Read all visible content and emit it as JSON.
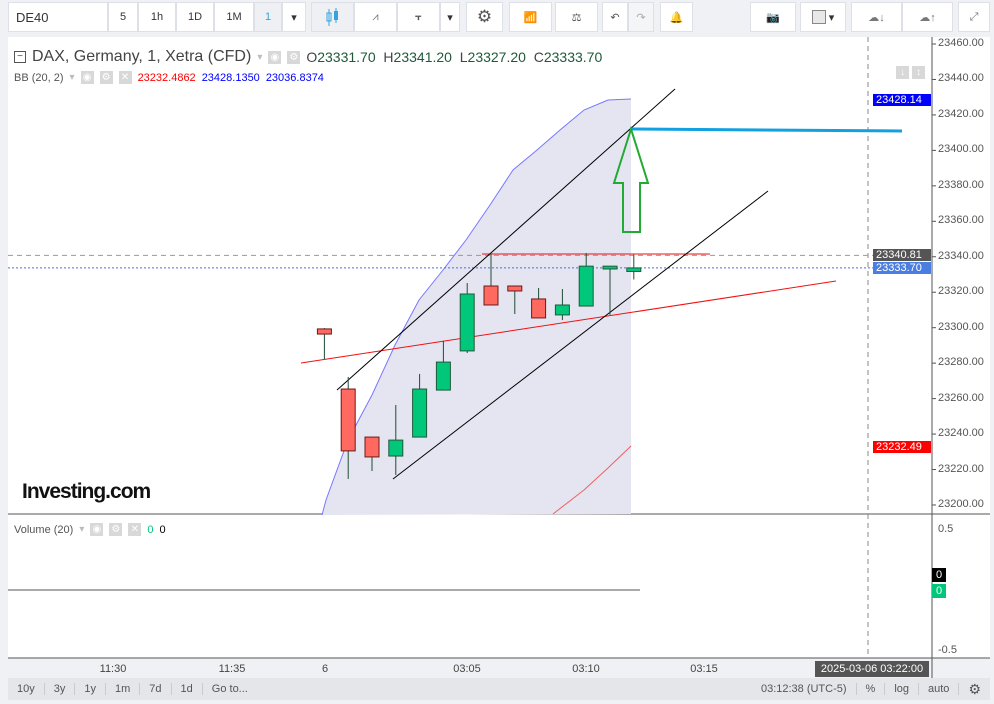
{
  "toolbar": {
    "symbol": "DE40",
    "intervals": [
      "5",
      "1h",
      "1D",
      "1M",
      "1"
    ],
    "selected_interval": "1",
    "icons": [
      "candles-icon",
      "line-chart-icon",
      "bars-icon",
      "settings-gear-icon",
      "indicators-icon",
      "compare-scale-icon",
      "undo-icon",
      "redo-icon",
      "alert-bell-icon",
      "camera-icon",
      "color-swatch-icon",
      "cloud-load-icon",
      "cloud-save-icon",
      "fullscreen-icon"
    ]
  },
  "legend": {
    "title": "DAX, Germany, 1, Xetra (CFD)",
    "o_label": "O",
    "o": "23331.70",
    "h_label": "H",
    "h": "23341.20",
    "l_label": "L",
    "l": "23327.20",
    "c_label": "C",
    "c": "23333.70",
    "bb": {
      "name": "BB (20, 2)",
      "basis": "23232.4862",
      "upper": "23428.1350",
      "lower": "23036.8374",
      "colors": {
        "basis": "#ff0000",
        "upper": "#0000ff",
        "lower": "#0000ff"
      }
    }
  },
  "volume": {
    "name": "Volume (20)",
    "v1": "0",
    "v2": "0",
    "axis": [
      "0.5",
      "-0.5"
    ],
    "tag_black": "0",
    "tag_green": "0"
  },
  "price_axis": [
    "23460.00",
    "23440.00",
    "23420.00",
    "23400.00",
    "23380.00",
    "23360.00",
    "23340.00",
    "23320.00",
    "23300.00",
    "23280.00",
    "23260.00",
    "23240.00",
    "23220.00",
    "23200.00"
  ],
  "price_tags": [
    {
      "label": "23428.14",
      "color": "#0000ff",
      "value": 23428.14
    },
    {
      "label": "23340.81",
      "color": "#555555",
      "value": 23340.81
    },
    {
      "label": "23333.70",
      "color": "#4a7ee0",
      "value": 23333.7
    },
    {
      "label": "23232.49",
      "color": "#ff0000",
      "value": 23232.49
    }
  ],
  "time_axis": [
    "11:30",
    "11:35",
    "6",
    "03:05",
    "03:10",
    "03:15"
  ],
  "crosshair_time": "2025-03-06 03:22:00",
  "logo": "Investing.com",
  "bottom": {
    "ranges": [
      "10y",
      "3y",
      "1y",
      "1m",
      "7d",
      "1d",
      "Go to..."
    ],
    "clock": "03:12:38 (UTC-5)",
    "pct": "%",
    "log": "log",
    "auto": "auto"
  },
  "colors": {
    "up": "#00c77a",
    "down": "#ff6960",
    "wick": "#1e4d33"
  },
  "chart_data": {
    "type": "candlestick",
    "ylim": [
      23200,
      23460
    ],
    "candles": [
      {
        "o": 23299.3,
        "h": 23299.8,
        "l": 23282.3,
        "c": 23296.4
      },
      {
        "o": 23265.4,
        "h": 23272.2,
        "l": 23214.7,
        "c": 23230.5
      },
      {
        "o": 23238.3,
        "h": 23238.3,
        "l": 23219.2,
        "c": 23227.1
      },
      {
        "o": 23227.6,
        "h": 23256.4,
        "l": 23216.9,
        "c": 23236.6
      },
      {
        "o": 23238.3,
        "h": 23273.9,
        "l": 23238.3,
        "c": 23265.4
      },
      {
        "o": 23264.8,
        "h": 23292.5,
        "l": 23264.8,
        "c": 23280.6
      },
      {
        "o": 23286.9,
        "h": 23325.2,
        "l": 23285.7,
        "c": 23319.0
      },
      {
        "o": 23323.5,
        "h": 23341.6,
        "l": 23312.8,
        "c": 23312.8
      },
      {
        "o": 23323.5,
        "h": 23323.5,
        "l": 23307.7,
        "c": 23320.7
      },
      {
        "o": 23316.2,
        "h": 23322.4,
        "l": 23305.5,
        "c": 23305.5
      },
      {
        "o": 23307.2,
        "h": 23321.8,
        "l": 23304.3,
        "c": 23312.8
      },
      {
        "o": 23312.2,
        "h": 23342.1,
        "l": 23312.2,
        "c": 23334.7
      },
      {
        "o": 23333.1,
        "h": 23334.7,
        "l": 23307.2,
        "c": 23334.7
      },
      {
        "o": 23331.7,
        "h": 23341.2,
        "l": 23327.2,
        "c": 23333.7
      }
    ]
  }
}
